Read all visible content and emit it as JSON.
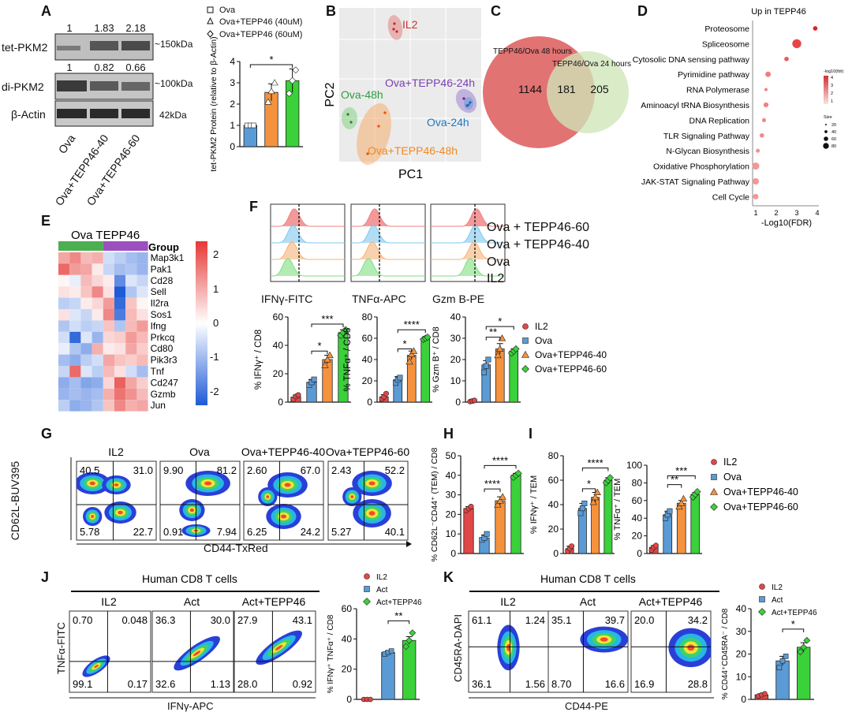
{
  "panel_letters": [
    "A",
    "B",
    "C",
    "D",
    "E",
    "F",
    "G",
    "H",
    "I",
    "J",
    "K"
  ],
  "colors": {
    "il2": "#e04848",
    "ova": "#5b9bd5",
    "tepp40": "#f5923e",
    "tepp60": "#3ad13a",
    "venn_left": "#e06c6c",
    "venn_right": "#cfe5b8"
  },
  "panelA": {
    "row_labels": [
      "tet-PKM2",
      "di-PKM2",
      "β-Actin"
    ],
    "tet_ratios": [
      "1",
      "1.83",
      "2.18"
    ],
    "di_ratios": [
      "1",
      "0.82",
      "0.66"
    ],
    "sizes": [
      "~150kDa",
      "~100kDa",
      "42kDa"
    ],
    "lane_labels": [
      "Ova",
      "Ova+TEPP46-40",
      "Ova+TEPP46-60"
    ],
    "legend": [
      "Ova",
      "Ova+TEPP46 (40uM)",
      "Ova+TEPP46 (60uM)"
    ],
    "sig": "*"
  },
  "panelB": {
    "xlabel": "PC1",
    "ylabel": "PC2",
    "groups": [
      "IL2",
      "Ova+TEPP46-24h",
      "Ova-48h",
      "Ova-24h",
      "Ova+TEPP46-48h"
    ]
  },
  "panelC": {
    "left_label": "TEPP46/Ova 48 hours",
    "right_label": "TEPP46/Ova 24 hours",
    "left_only": "1144",
    "overlap": "181",
    "right_only": "205"
  },
  "panelE": {
    "header": "Ova  TEPP46",
    "group_label": "Group",
    "genes": [
      "Map3k1",
      "Pak1",
      "Cd28",
      "Sell",
      "Il2ra",
      "Sos1",
      "Ifng",
      "Prkcq",
      "Cd80",
      "Pik3r3",
      "Tnf",
      "Cd247",
      "Gzmb",
      "Jun"
    ],
    "scale_ticks": [
      "2",
      "1",
      "0",
      "-1",
      "-2"
    ]
  },
  "panelF": {
    "hist_labels": [
      "IFNγ-FITC",
      "TNFα-APC",
      "Gzm B-PE"
    ],
    "hist_rows": [
      "Ova + TEPP46-60",
      "Ova + TEPP46-40",
      "Ova",
      "IL2"
    ],
    "legend": [
      "IL2",
      "Ova",
      "Ova+TEPP46-40",
      "Ova+TEPP46-60"
    ]
  },
  "panelG": {
    "titles": [
      "IL2",
      "Ova",
      "Ova+TEPP46-40",
      "Ova+TEPP46-60"
    ],
    "ylabel": "CD62L-BUV395",
    "xlabel": "CD44-TxRed",
    "quadrants": [
      [
        "40.5",
        "31.0",
        "5.78",
        "22.7"
      ],
      [
        "9.90",
        "81.2",
        "0.91",
        "7.94"
      ],
      [
        "2.60",
        "67.0",
        "6.25",
        "24.2"
      ],
      [
        "2.43",
        "52.2",
        "5.27",
        "40.1"
      ]
    ]
  },
  "panelI_legend": [
    "IL2",
    "Ova",
    "Ova+TEPP46-40",
    "Ova+TEPP46-60"
  ],
  "panelJ": {
    "header": "Human CD8 T cells",
    "titles": [
      "IL2",
      "Act",
      "Act+TEPP46"
    ],
    "ylabel": "TNFα-FITC",
    "xlabel": "IFNγ-APC",
    "quadrants": [
      [
        "0.70",
        "0.048",
        "99.1",
        "0.17"
      ],
      [
        "36.3",
        "30.0",
        "32.6",
        "1.13"
      ],
      [
        "27.9",
        "43.1",
        "28.0",
        "0.92"
      ]
    ],
    "legend": [
      "IL2",
      "Act",
      "Act+TEPP46"
    ]
  },
  "panelK": {
    "header": "Human CD8 T cells",
    "titles": [
      "IL2",
      "Act",
      "Act+TEPP46"
    ],
    "ylabel": "CD45RA-DAPI",
    "xlabel": "CD44-PE",
    "quadrants": [
      [
        "61.1",
        "1.24",
        "36.1",
        "1.56"
      ],
      [
        "35.1",
        "39.7",
        "8.70",
        "16.6"
      ],
      [
        "20.0",
        "34.2",
        "16.9",
        "28.8"
      ]
    ],
    "legend": [
      "IL2",
      "Act",
      "Act+TEPP46"
    ]
  },
  "chart_data": [
    {
      "id": "A",
      "type": "bar",
      "ylabel": "tet-PKM2 Protein (relative to β-Actin)",
      "ylim": [
        0,
        4
      ],
      "yticks": [
        0,
        1,
        2,
        3,
        4
      ],
      "categories": [
        "Ova",
        "Ova+TEPP46 (40uM)",
        "Ova+TEPP46 (60uM)"
      ],
      "values": [
        1.0,
        2.55,
        3.1
      ],
      "errors": [
        0.08,
        0.4,
        0.55
      ],
      "points": [
        [
          1.0,
          1.0,
          1.0
        ],
        [
          2.1,
          2.6,
          3.0
        ],
        [
          2.5,
          3.1,
          3.6
        ]
      ],
      "sig": [
        "*"
      ]
    },
    {
      "id": "D",
      "type": "scatter",
      "title": "Up in TEPP46",
      "xlabel": "-Log10(FDR)",
      "xlim": [
        1,
        4
      ],
      "xticks": [
        1,
        2,
        3,
        4
      ],
      "categories": [
        "Proteosome",
        "Spliceosome",
        "Cytosolic DNA sensing pathway",
        "Pyrimidine pathway",
        "RNA Polymerase",
        "Aminoacyl tRNA Biosynthesis",
        "DNA Replication",
        "TLR Signaling Pathway",
        "N-Glycan Biosynthesis",
        "Oxidative Phosphorylation",
        "JAK-STAT Signaling Pathway",
        "Cell Cycle"
      ],
      "x": [
        3.9,
        3.0,
        2.5,
        1.6,
        1.5,
        1.5,
        1.4,
        1.3,
        1.1,
        1.0,
        1.0,
        1.0
      ],
      "size": [
        10,
        40,
        10,
        15,
        5,
        12,
        8,
        10,
        8,
        25,
        20,
        15
      ],
      "color_legend": {
        "title": "-log10(fdr)",
        "ticks": [
          "4",
          "3",
          "2",
          "1"
        ]
      },
      "size_legend": {
        "title": "Size",
        "ticks": [
          "20",
          "40",
          "60",
          "80"
        ]
      }
    },
    {
      "id": "F1",
      "type": "bar",
      "ylabel": "% IFNγ⁺ / CD8",
      "ylim": [
        0,
        60
      ],
      "yticks": [
        0,
        20,
        40,
        60
      ],
      "values": [
        3.5,
        14,
        30,
        49
      ],
      "errors": [
        1.5,
        2,
        3,
        2
      ],
      "points": [
        [
          2,
          4,
          5
        ],
        [
          12,
          14,
          16
        ],
        [
          26,
          30,
          33
        ],
        [
          47,
          49,
          51
        ]
      ],
      "sig": [
        "*",
        "***"
      ]
    },
    {
      "id": "F2",
      "type": "bar",
      "ylabel": "% TNFα⁺ / CD8",
      "ylim": [
        0,
        80
      ],
      "yticks": [
        0,
        20,
        40,
        60,
        80
      ],
      "values": [
        5,
        21,
        44,
        60
      ],
      "errors": [
        2,
        3,
        4,
        1
      ],
      "points": [
        [
          3,
          5,
          8
        ],
        [
          18,
          21,
          23
        ],
        [
          38,
          45,
          48
        ],
        [
          59,
          60,
          61
        ]
      ],
      "sig": [
        "*",
        "****"
      ]
    },
    {
      "id": "F3",
      "type": "bar",
      "ylabel": "% Gzm B⁺ / CD8",
      "ylim": [
        0,
        40
      ],
      "yticks": [
        0,
        10,
        20,
        30,
        40
      ],
      "values": [
        0.5,
        17.5,
        25,
        24
      ],
      "errors": [
        0.2,
        2,
        2.5,
        1
      ],
      "points": [
        [
          0.3,
          0.5,
          0.8
        ],
        [
          14,
          17,
          20
        ],
        [
          22,
          25,
          30
        ],
        [
          23,
          24,
          25
        ]
      ],
      "sig": [
        "**",
        "*"
      ]
    },
    {
      "id": "H",
      "type": "bar",
      "ylabel": "% CD62L⁻CD44⁺ (TEM) / CD8",
      "ylim": [
        0,
        50
      ],
      "yticks": [
        0,
        10,
        20,
        30,
        40,
        50
      ],
      "values": [
        23,
        8,
        27,
        40
      ],
      "errors": [
        1,
        1.5,
        2,
        1
      ],
      "points": [
        [
          22,
          23,
          24
        ],
        [
          7,
          8,
          10
        ],
        [
          25,
          27,
          29
        ],
        [
          39,
          40,
          41
        ]
      ],
      "sig": [
        "****",
        "****"
      ]
    },
    {
      "id": "I1",
      "type": "bar",
      "ylabel": "% IFNγ⁺ / TEM",
      "ylim": [
        0,
        80
      ],
      "yticks": [
        0,
        20,
        40,
        60,
        80
      ],
      "values": [
        4,
        37,
        46,
        60
      ],
      "errors": [
        2,
        4,
        4,
        2
      ],
      "points": [
        [
          2,
          4,
          6
        ],
        [
          33,
          37,
          41
        ],
        [
          42,
          46,
          50
        ],
        [
          58,
          60,
          62
        ]
      ],
      "sig": [
        "*",
        "****"
      ]
    },
    {
      "id": "I2",
      "type": "bar",
      "ylabel": "% TNFα⁺ / TEM",
      "ylim": [
        0,
        100
      ],
      "yticks": [
        0,
        20,
        40,
        60,
        80,
        100
      ],
      "values": [
        7,
        44,
        57,
        67
      ],
      "errors": [
        2,
        4,
        3,
        2
      ],
      "points": [
        [
          4,
          7,
          9
        ],
        [
          40,
          44,
          48
        ],
        [
          53,
          57,
          62
        ],
        [
          64,
          67,
          70
        ]
      ],
      "sig": [
        "**",
        "***"
      ]
    },
    {
      "id": "J",
      "type": "bar",
      "ylabel": "% IFNγ⁺ TNFα⁺ / CD8",
      "ylim": [
        0,
        60
      ],
      "yticks": [
        0,
        20,
        40,
        60
      ],
      "values": [
        0,
        31,
        39
      ],
      "errors": [
        0.1,
        1,
        2.5
      ],
      "points": [
        [
          0,
          0,
          0
        ],
        [
          30,
          31,
          32
        ],
        [
          35,
          39,
          44
        ]
      ],
      "sig": [
        "**"
      ]
    },
    {
      "id": "K",
      "type": "bar",
      "ylabel": "% CD44⁺CD45RA⁻ / CD8",
      "ylim": [
        0,
        40
      ],
      "yticks": [
        0,
        10,
        20,
        30,
        40
      ],
      "values": [
        2,
        17,
        23
      ],
      "errors": [
        0.5,
        2,
        2
      ],
      "points": [
        [
          1.5,
          2,
          2.5
        ],
        [
          14,
          17,
          19
        ],
        [
          21,
          23,
          26
        ]
      ],
      "sig": [
        "*"
      ]
    }
  ]
}
